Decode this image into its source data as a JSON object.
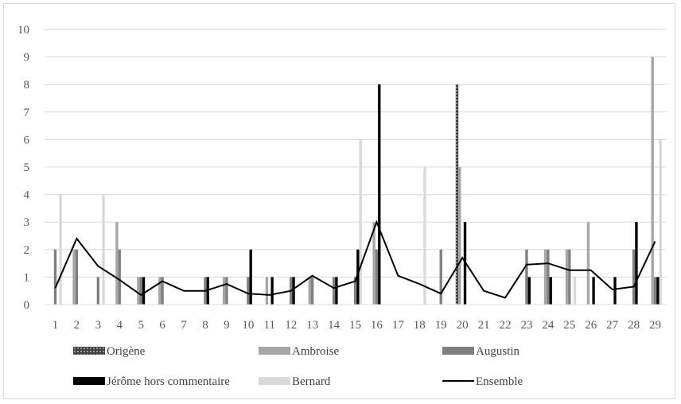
{
  "chart_data": {
    "type": "bar",
    "title": "",
    "xlabel": "",
    "ylabel": "",
    "ylim": [
      0,
      10
    ],
    "yticks": [
      0,
      1,
      2,
      3,
      4,
      5,
      6,
      7,
      8,
      9,
      10
    ],
    "grid": true,
    "legend_position": "bottom",
    "categories": [
      "1",
      "2",
      "3",
      "4",
      "5",
      "6",
      "7",
      "8",
      "9",
      "10",
      "11",
      "12",
      "13",
      "14",
      "15",
      "16",
      "17",
      "18",
      "19",
      "20",
      "21",
      "22",
      "23",
      "24",
      "25",
      "26",
      "27",
      "28",
      "29"
    ],
    "series": [
      {
        "name": "Origène",
        "type": "bar",
        "color": "#404040",
        "pattern": "dotted",
        "values": [
          0,
          0,
          0,
          0,
          0,
          0,
          0,
          0,
          0,
          0,
          0,
          0,
          0,
          0,
          0,
          0,
          0,
          0,
          0,
          8,
          0,
          0,
          0,
          0,
          0,
          0,
          0,
          0,
          0
        ]
      },
      {
        "name": "Ambroise",
        "type": "bar",
        "color": "#a6a6a6",
        "values": [
          0,
          2,
          0,
          3,
          1,
          1,
          0,
          0,
          1,
          0,
          1,
          0,
          1,
          0,
          0,
          3,
          0,
          0,
          0,
          5,
          0,
          0,
          0,
          2,
          2,
          3,
          0,
          0,
          9
        ]
      },
      {
        "name": "Augustin",
        "type": "bar",
        "color": "#7f7f7f",
        "values": [
          2,
          2,
          1,
          2,
          1,
          1,
          0,
          1,
          1,
          1,
          0,
          1,
          1,
          1,
          1,
          2,
          0,
          0,
          2,
          0,
          0,
          0,
          2,
          2,
          2,
          0,
          0,
          2,
          1
        ]
      },
      {
        "name": "Jérôme hors commentaire",
        "type": "bar",
        "color": "#000000",
        "values": [
          0,
          0,
          0,
          0,
          1,
          0,
          0,
          1,
          0,
          2,
          1,
          1,
          0,
          1,
          2,
          8,
          0,
          0,
          0,
          3,
          0,
          0,
          1,
          1,
          0,
          1,
          1,
          3,
          1
        ]
      },
      {
        "name": "Bernard",
        "type": "bar",
        "color": "#d9d9d9",
        "values": [
          4,
          0,
          4,
          0,
          0,
          0,
          0,
          0,
          0,
          0,
          0,
          0,
          0,
          0,
          6,
          0,
          0,
          5,
          0,
          0,
          0,
          0,
          0,
          0,
          1,
          0,
          0,
          0,
          6
        ]
      },
      {
        "name": "Ensemble",
        "type": "line",
        "color": "#000000",
        "values": [
          0.6,
          2.4,
          1.4,
          0.9,
          0.35,
          0.85,
          0.5,
          0.5,
          0.75,
          0.4,
          0.35,
          0.5,
          1.05,
          0.6,
          0.85,
          3.0,
          1.05,
          0.75,
          0.4,
          1.7,
          0.5,
          0.25,
          1.45,
          1.5,
          1.25,
          1.25,
          0.55,
          0.65,
          2.3
        ]
      }
    ]
  }
}
